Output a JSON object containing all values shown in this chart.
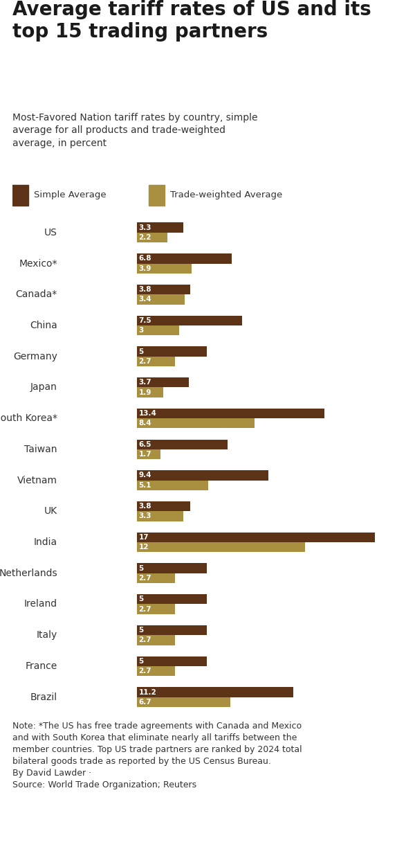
{
  "title": "Average tariff rates of US and its\ntop 15 trading partners",
  "subtitle": "Most-Favored Nation tariff rates by country, simple\naverage for all products and trade-weighted\naverage, in percent",
  "legend_simple": "Simple Average",
  "legend_trade": "Trade-weighted Average",
  "countries": [
    "US",
    "Mexico*",
    "Canada*",
    "China",
    "Germany",
    "Japan",
    "South Korea*",
    "Taiwan",
    "Vietnam",
    "UK",
    "India",
    "Netherlands",
    "Ireland",
    "Italy",
    "France",
    "Brazil"
  ],
  "simple_avg": [
    3.3,
    6.8,
    3.8,
    7.5,
    5.0,
    3.7,
    13.4,
    6.5,
    9.4,
    3.8,
    17.0,
    5.0,
    5.0,
    5.0,
    5.0,
    11.2
  ],
  "trade_avg": [
    2.2,
    3.9,
    3.4,
    3.0,
    2.7,
    1.9,
    8.4,
    1.7,
    5.1,
    3.3,
    12.0,
    2.7,
    2.7,
    2.7,
    2.7,
    6.7
  ],
  "simple_labels": [
    "3.3",
    "6.8",
    "3.8",
    "7.5",
    "5",
    "3.7",
    "13.4",
    "6.5",
    "9.4",
    "3.8",
    "17",
    "5",
    "5",
    "5",
    "5",
    "11.2"
  ],
  "trade_labels": [
    "2.2",
    "3.9",
    "3.4",
    "3",
    "2.7",
    "1.9",
    "8.4",
    "1.7",
    "5.1",
    "3.3",
    "12",
    "2.7",
    "2.7",
    "2.7",
    "2.7",
    "6.7"
  ],
  "color_simple": "#5C3317",
  "color_trade": "#A89040",
  "background_color": "#FFFFFF",
  "note": "Note: *The US has free trade agreements with Canada and Mexico\nand with South Korea that eliminate nearly all tariffs between the\nmember countries. Top US trade partners are ranked by 2024 total\nbilateral goods trade as reported by the US Census Bureau.\nBy David Lawder ·\nSource: World Trade Organization; Reuters",
  "xlim": [
    0,
    19
  ],
  "bar_height": 0.32,
  "label_fontsize": 7.5,
  "country_fontsize": 10,
  "title_fontsize": 20,
  "subtitle_fontsize": 10,
  "note_fontsize": 9
}
